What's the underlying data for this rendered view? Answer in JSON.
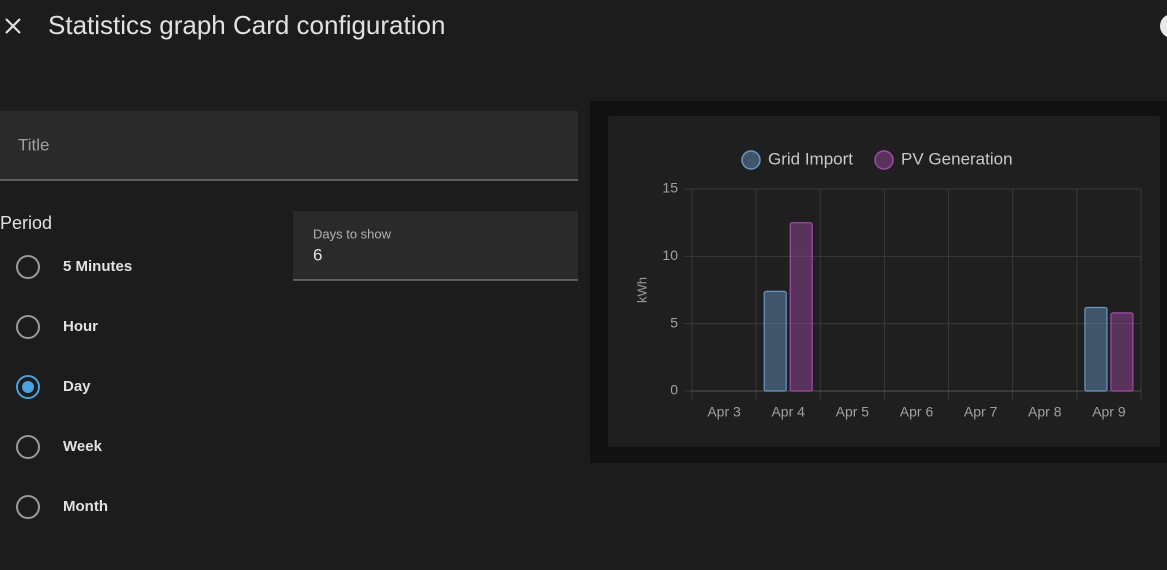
{
  "header": {
    "title": "Statistics graph Card configuration"
  },
  "form": {
    "title_field": {
      "label": "Title"
    },
    "period": {
      "label": "Period",
      "options": [
        "5 Minutes",
        "Hour",
        "Day",
        "Week",
        "Month"
      ],
      "selected": 2
    },
    "days_to_show": {
      "label": "Days to show",
      "value": 6
    }
  },
  "chart_data": {
    "type": "bar",
    "y_label": "kWh",
    "categories": [
      "Apr 3",
      "Apr 4",
      "Apr 5",
      "Apr 6",
      "Apr 7",
      "Apr 8",
      "Apr 9"
    ],
    "series": [
      {
        "name": "Grid Import",
        "color": "#6a96c6",
        "values": [
          0,
          7.4,
          0,
          0,
          0,
          0,
          6.2
        ]
      },
      {
        "name": "PV Generation",
        "color": "#a24ca8",
        "values": [
          0,
          12.5,
          0,
          0,
          0,
          0,
          5.8
        ]
      }
    ],
    "ylim": [
      0,
      15
    ],
    "yticks": [
      0,
      5,
      10,
      15
    ],
    "grid": true
  }
}
